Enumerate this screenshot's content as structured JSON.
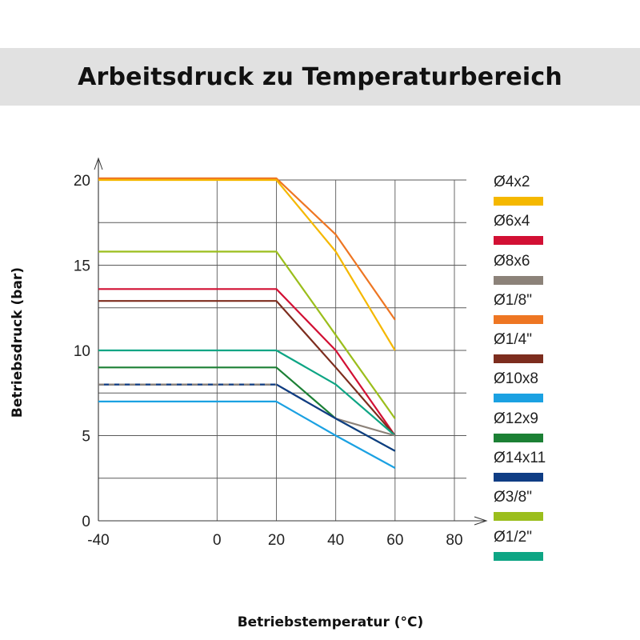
{
  "chart_data": {
    "type": "line",
    "title": "Arbeitsdruck zu Temperaturbereich",
    "xlabel": "Betriebstemperatur (°C)",
    "ylabel": "Betriebsdruck (bar)",
    "x_ticks": [
      "-40",
      "0",
      "20",
      "40",
      "60",
      "80"
    ],
    "y_ticks": [
      "0",
      "5",
      "10",
      "15",
      "20"
    ],
    "xlim": [
      -40,
      80
    ],
    "ylim": [
      0,
      20
    ],
    "grid": true,
    "legend_position": "right",
    "series": [
      {
        "name": "Ø4x2",
        "color": "#f5b800",
        "points": [
          [
            -40,
            20
          ],
          [
            20,
            20
          ],
          [
            40,
            15.8
          ],
          [
            60,
            10
          ]
        ]
      },
      {
        "name": "Ø6x4",
        "color": "#d21034",
        "points": [
          [
            -40,
            13.6
          ],
          [
            20,
            13.6
          ],
          [
            40,
            10
          ],
          [
            60,
            5
          ]
        ]
      },
      {
        "name": "Ø8x6",
        "color": "#8c8279",
        "dashed": true,
        "points": [
          [
            -40,
            8
          ],
          [
            20,
            8
          ],
          [
            40,
            6
          ],
          [
            60,
            5
          ]
        ]
      },
      {
        "name": "Ø1/8\"",
        "color": "#ee7623",
        "points": [
          [
            -40,
            20.1
          ],
          [
            20,
            20.1
          ],
          [
            40,
            16.8
          ],
          [
            60,
            11.8
          ]
        ]
      },
      {
        "name": "Ø1/4\"",
        "color": "#7d2d1e",
        "points": [
          [
            -40,
            12.9
          ],
          [
            20,
            12.9
          ],
          [
            40,
            9
          ],
          [
            60,
            5
          ]
        ]
      },
      {
        "name": "Ø10x8",
        "color": "#1ba1e2",
        "points": [
          [
            -40,
            7
          ],
          [
            20,
            7
          ],
          [
            40,
            5
          ],
          [
            60,
            3.1
          ]
        ]
      },
      {
        "name": "Ø12x9",
        "color": "#1c8035",
        "points": [
          [
            -40,
            9
          ],
          [
            20,
            9
          ],
          [
            40,
            6
          ],
          [
            60,
            4.1
          ]
        ]
      },
      {
        "name": "Ø14x11",
        "color": "#0f3d84",
        "dashed": true,
        "points": [
          [
            -40,
            8
          ],
          [
            20,
            8
          ],
          [
            40,
            6
          ],
          [
            60,
            4.1
          ]
        ]
      },
      {
        "name": "Ø3/8\"",
        "color": "#9bbe1c",
        "points": [
          [
            -40,
            15.8
          ],
          [
            20,
            15.8
          ],
          [
            40,
            10.9
          ],
          [
            60,
            6
          ]
        ]
      },
      {
        "name": "Ø1/2\"",
        "color": "#0ea584",
        "points": [
          [
            -40,
            10
          ],
          [
            20,
            10
          ],
          [
            40,
            8
          ],
          [
            60,
            5
          ]
        ]
      }
    ]
  }
}
